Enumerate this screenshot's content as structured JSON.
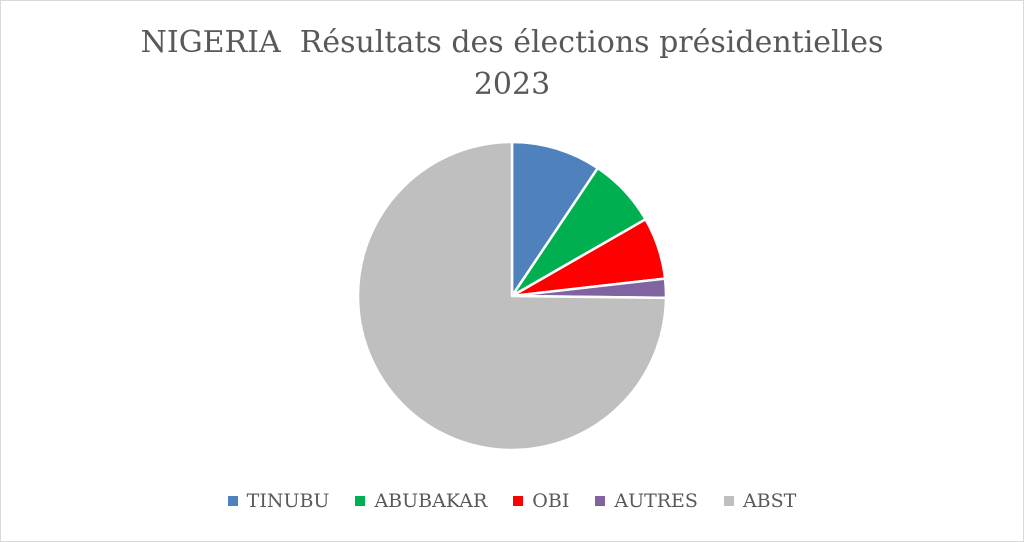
{
  "chart_data": {
    "type": "pie",
    "title_lines": [
      "NIGERIA  Résultats des élections présidentielles",
      "2023"
    ],
    "series": [
      {
        "name": "TINUBU",
        "value": 9.4,
        "color": "#4f81bd"
      },
      {
        "name": "ABUBAKAR",
        "value": 7.3,
        "color": "#00b050"
      },
      {
        "name": "OBI",
        "value": 6.5,
        "color": "#ff0000"
      },
      {
        "name": "AUTRES",
        "value": 2.0,
        "color": "#8064a2"
      },
      {
        "name": "ABST",
        "value": 74.8,
        "color": "#bfbfbf"
      }
    ],
    "legend_position": "bottom"
  }
}
